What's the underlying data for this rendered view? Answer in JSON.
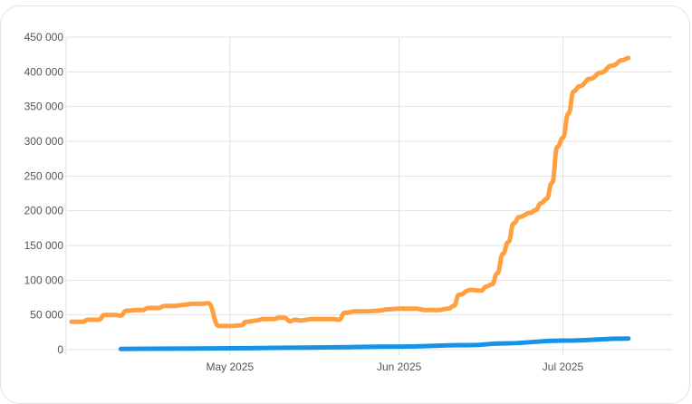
{
  "chart_data": {
    "type": "line",
    "title": "",
    "xlabel": "",
    "ylabel": "",
    "ylim": [
      0,
      450000
    ],
    "xlim": [
      "2025-04-01",
      "2025-07-21"
    ],
    "y_ticks": [
      {
        "value": 0,
        "label": "0"
      },
      {
        "value": 50000,
        "label": "50 000"
      },
      {
        "value": 100000,
        "label": "100 000"
      },
      {
        "value": 150000,
        "label": "150 000"
      },
      {
        "value": 200000,
        "label": "200 000"
      },
      {
        "value": 250000,
        "label": "250 000"
      },
      {
        "value": 300000,
        "label": "300 000"
      },
      {
        "value": 350000,
        "label": "350 000"
      },
      {
        "value": 400000,
        "label": "400 000"
      },
      {
        "value": 450000,
        "label": "450 000"
      }
    ],
    "x_ticks": [
      {
        "value": "2025-05-01",
        "label": "May 2025"
      },
      {
        "value": "2025-06-01",
        "label": "Jun 2025"
      },
      {
        "value": "2025-07-01",
        "label": "Jul 2025"
      }
    ],
    "grid": true,
    "legend": "none",
    "series": [
      {
        "color": "#ff9f40",
        "points": [
          [
            "2025-04-02",
            40000
          ],
          [
            "2025-04-04",
            40000
          ],
          [
            "2025-04-05",
            43000
          ],
          [
            "2025-04-07",
            43000
          ],
          [
            "2025-04-08",
            50000
          ],
          [
            "2025-04-10",
            50000
          ],
          [
            "2025-04-11",
            49000
          ],
          [
            "2025-04-12",
            56000
          ],
          [
            "2025-04-14",
            57000
          ],
          [
            "2025-04-15",
            57000
          ],
          [
            "2025-04-16",
            60000
          ],
          [
            "2025-04-18",
            60000
          ],
          [
            "2025-04-19",
            63000
          ],
          [
            "2025-04-21",
            63000
          ],
          [
            "2025-04-22",
            64000
          ],
          [
            "2025-04-23",
            65000
          ],
          [
            "2025-04-24",
            66000
          ],
          [
            "2025-04-26",
            66000
          ],
          [
            "2025-04-27",
            67000
          ],
          [
            "2025-04-29",
            34000
          ],
          [
            "2025-05-01",
            34000
          ],
          [
            "2025-05-03",
            35000
          ],
          [
            "2025-05-04",
            40000
          ],
          [
            "2025-05-06",
            42000
          ],
          [
            "2025-05-07",
            44000
          ],
          [
            "2025-05-09",
            44000
          ],
          [
            "2025-05-10",
            46000
          ],
          [
            "2025-05-11",
            46000
          ],
          [
            "2025-05-12",
            41000
          ],
          [
            "2025-05-13",
            43000
          ],
          [
            "2025-05-14",
            42000
          ],
          [
            "2025-05-16",
            44000
          ],
          [
            "2025-05-18",
            44000
          ],
          [
            "2025-05-20",
            44000
          ],
          [
            "2025-05-21",
            43000
          ],
          [
            "2025-05-22",
            53000
          ],
          [
            "2025-05-24",
            55000
          ],
          [
            "2025-05-26",
            55000
          ],
          [
            "2025-05-28",
            56000
          ],
          [
            "2025-05-30",
            58000
          ],
          [
            "2025-06-01",
            59000
          ],
          [
            "2025-06-04",
            59000
          ],
          [
            "2025-06-06",
            57000
          ],
          [
            "2025-06-08",
            57000
          ],
          [
            "2025-06-10",
            59000
          ],
          [
            "2025-06-11",
            63000
          ],
          [
            "2025-06-12",
            79000
          ],
          [
            "2025-06-14",
            86000
          ],
          [
            "2025-06-16",
            85000
          ],
          [
            "2025-06-17",
            91000
          ],
          [
            "2025-06-18",
            94000
          ],
          [
            "2025-06-19",
            110000
          ],
          [
            "2025-06-20",
            138000
          ],
          [
            "2025-06-21",
            155000
          ],
          [
            "2025-06-22",
            182000
          ],
          [
            "2025-06-23",
            191000
          ],
          [
            "2025-06-25",
            197000
          ],
          [
            "2025-06-26",
            201000
          ],
          [
            "2025-06-27",
            211000
          ],
          [
            "2025-06-28",
            217000
          ],
          [
            "2025-06-29",
            240000
          ],
          [
            "2025-06-30",
            292000
          ],
          [
            "2025-07-01",
            305000
          ],
          [
            "2025-07-02",
            340000
          ],
          [
            "2025-07-03",
            372000
          ],
          [
            "2025-07-04",
            379000
          ],
          [
            "2025-07-06",
            390000
          ],
          [
            "2025-07-08",
            399000
          ],
          [
            "2025-07-10",
            409000
          ],
          [
            "2025-07-12",
            417000
          ],
          [
            "2025-07-13",
            420000
          ]
        ]
      },
      {
        "color": "#1593e8",
        "points": [
          [
            "2025-04-11",
            1000
          ],
          [
            "2025-04-20",
            1500
          ],
          [
            "2025-05-01",
            2000
          ],
          [
            "2025-05-15",
            3000
          ],
          [
            "2025-06-01",
            4500
          ],
          [
            "2025-06-14",
            6500
          ],
          [
            "2025-06-20",
            9000
          ],
          [
            "2025-07-01",
            13000
          ],
          [
            "2025-07-13",
            16000
          ]
        ]
      }
    ]
  }
}
